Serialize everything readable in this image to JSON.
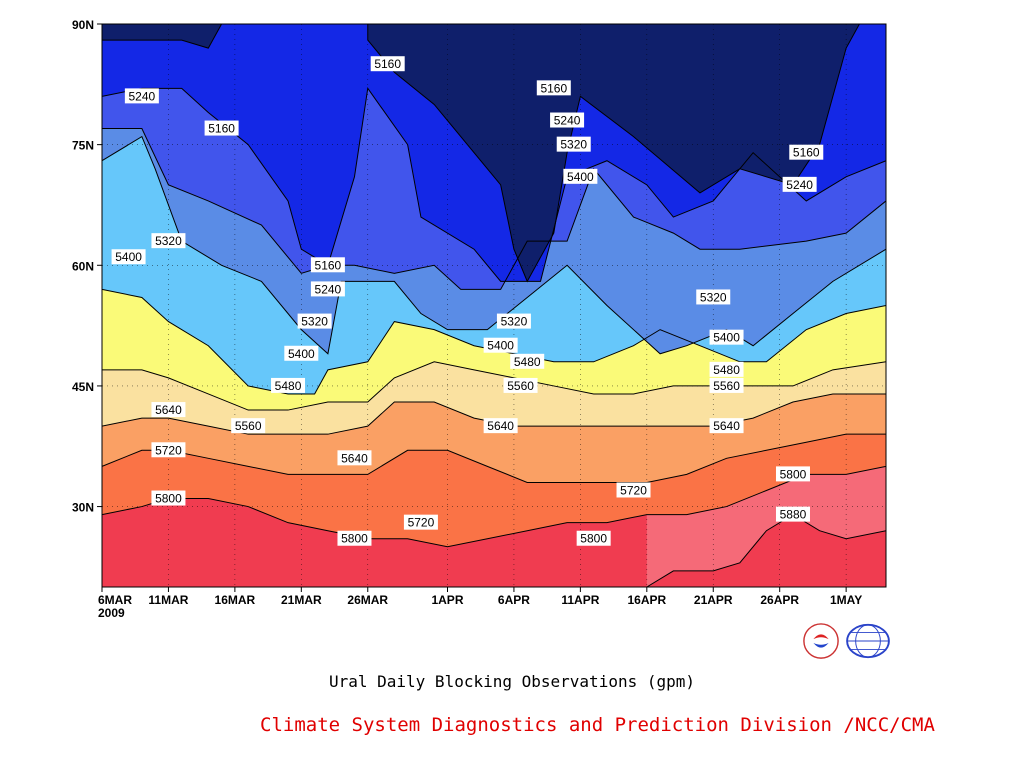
{
  "chart_data": {
    "type": "heatmap",
    "title": "Ural Daily Blocking Observations (gpm)",
    "source": "Climate System Diagnostics and Prediction Division /NCC/CMA",
    "x_date_labels": [
      "6MAR",
      "11MAR",
      "16MAR",
      "21MAR",
      "26MAR",
      "1APR",
      "6APR",
      "11APR",
      "16APR",
      "21APR",
      "26APR",
      "1MAY"
    ],
    "x_year_label": "2009",
    "x_days": [
      0,
      5,
      10,
      15,
      20,
      26,
      31,
      36,
      41,
      46,
      51,
      56
    ],
    "xlim_days": [
      0,
      59
    ],
    "y_tick_labels": [
      "30N",
      "45N",
      "60N",
      "75N",
      "90N"
    ],
    "y_ticks": [
      30,
      45,
      60,
      75,
      90
    ],
    "ylim": [
      20,
      90
    ],
    "contour_levels": [
      5160,
      5240,
      5320,
      5400,
      5480,
      5560,
      5640,
      5720,
      5800,
      5880
    ],
    "fill_colors": [
      "#0f1f6b",
      "#1428e6",
      "#4155ec",
      "#5a8ce6",
      "#66c7fa",
      "#fafa78",
      "#fae1a0",
      "#faa064",
      "#fa7346",
      "#f56a78",
      "#f03c50"
    ],
    "contour_lines": [
      {
        "level": 5160,
        "points": [
          [
            0,
            88
          ],
          [
            6,
            88
          ],
          [
            8,
            87
          ],
          [
            9,
            90
          ],
          [
            20,
            90
          ],
          [
            20,
            88
          ],
          [
            22,
            84
          ],
          [
            25,
            80
          ],
          [
            30,
            70
          ],
          [
            31,
            62
          ],
          [
            32,
            58
          ],
          [
            34,
            64
          ],
          [
            35,
            74
          ],
          [
            36,
            81
          ],
          [
            40,
            76
          ],
          [
            45,
            69
          ],
          [
            48,
            72
          ],
          [
            52,
            70
          ],
          [
            54,
            75
          ],
          [
            56,
            87
          ],
          [
            57,
            90
          ],
          [
            59,
            90
          ]
        ]
      },
      {
        "level": 5240,
        "points": [
          [
            0,
            81
          ],
          [
            3,
            82
          ],
          [
            6,
            82
          ],
          [
            8,
            79
          ],
          [
            11,
            75
          ],
          [
            14,
            68
          ],
          [
            15,
            62
          ],
          [
            17,
            60
          ],
          [
            19,
            71
          ],
          [
            20,
            82
          ],
          [
            23,
            75
          ],
          [
            24,
            66
          ],
          [
            28,
            62
          ],
          [
            30,
            58
          ],
          [
            33,
            58
          ],
          [
            35,
            71
          ],
          [
            38,
            73
          ],
          [
            41,
            70
          ],
          [
            43,
            66
          ],
          [
            46,
            68
          ],
          [
            49,
            74
          ],
          [
            53,
            68
          ],
          [
            56,
            71
          ],
          [
            59,
            73
          ]
        ]
      },
      {
        "level": 5320,
        "points": [
          [
            0,
            77
          ],
          [
            3,
            77
          ],
          [
            5,
            70
          ],
          [
            8,
            68
          ],
          [
            12,
            65
          ],
          [
            15,
            59
          ],
          [
            17,
            60
          ],
          [
            19,
            60
          ],
          [
            22,
            59
          ],
          [
            25,
            60
          ],
          [
            27,
            57
          ],
          [
            30,
            57
          ],
          [
            32,
            63
          ],
          [
            35,
            63
          ],
          [
            37,
            72
          ],
          [
            40,
            66
          ],
          [
            43,
            64
          ],
          [
            45,
            62
          ],
          [
            48,
            62
          ],
          [
            53,
            63
          ],
          [
            56,
            64
          ],
          [
            59,
            68
          ]
        ]
      },
      {
        "level": 5400,
        "points": [
          [
            0,
            73
          ],
          [
            3,
            76
          ],
          [
            4,
            72
          ],
          [
            6,
            63
          ],
          [
            9,
            60
          ],
          [
            12,
            58
          ],
          [
            15,
            52
          ],
          [
            17,
            49
          ],
          [
            18,
            58
          ],
          [
            22,
            58
          ],
          [
            24,
            54
          ],
          [
            26,
            52
          ],
          [
            29,
            52
          ],
          [
            32,
            56
          ],
          [
            35,
            60
          ],
          [
            38,
            55
          ],
          [
            42,
            49
          ],
          [
            44,
            50
          ],
          [
            47,
            52
          ],
          [
            49,
            50
          ],
          [
            52,
            54
          ],
          [
            55,
            58
          ],
          [
            59,
            62
          ]
        ]
      },
      {
        "level": 5480,
        "points": [
          [
            0,
            57
          ],
          [
            3,
            56
          ],
          [
            5,
            53
          ],
          [
            8,
            50
          ],
          [
            11,
            45
          ],
          [
            14,
            44
          ],
          [
            16,
            44
          ],
          [
            17,
            47
          ],
          [
            20,
            48
          ],
          [
            22,
            53
          ],
          [
            25,
            52
          ],
          [
            28,
            50
          ],
          [
            31,
            49
          ],
          [
            34,
            48
          ],
          [
            37,
            48
          ],
          [
            40,
            50
          ],
          [
            42,
            52
          ],
          [
            45,
            50
          ],
          [
            48,
            48
          ],
          [
            50,
            48
          ],
          [
            53,
            52
          ],
          [
            56,
            54
          ],
          [
            59,
            55
          ]
        ]
      },
      {
        "level": 5560,
        "points": [
          [
            0,
            47
          ],
          [
            3,
            47
          ],
          [
            5,
            46
          ],
          [
            8,
            44
          ],
          [
            11,
            42
          ],
          [
            14,
            42
          ],
          [
            17,
            43
          ],
          [
            20,
            43
          ],
          [
            22,
            46
          ],
          [
            25,
            48
          ],
          [
            28,
            47
          ],
          [
            31,
            46
          ],
          [
            34,
            45
          ],
          [
            37,
            44
          ],
          [
            40,
            44
          ],
          [
            43,
            45
          ],
          [
            46,
            45
          ],
          [
            49,
            45
          ],
          [
            52,
            45
          ],
          [
            55,
            47
          ],
          [
            59,
            48
          ]
        ]
      },
      {
        "level": 5640,
        "points": [
          [
            0,
            40
          ],
          [
            3,
            41
          ],
          [
            5,
            41
          ],
          [
            8,
            40
          ],
          [
            11,
            39
          ],
          [
            14,
            39
          ],
          [
            17,
            39
          ],
          [
            20,
            40
          ],
          [
            22,
            43
          ],
          [
            25,
            43
          ],
          [
            28,
            41
          ],
          [
            31,
            40
          ],
          [
            34,
            40
          ],
          [
            37,
            40
          ],
          [
            40,
            40
          ],
          [
            43,
            40
          ],
          [
            46,
            40
          ],
          [
            49,
            41
          ],
          [
            52,
            43
          ],
          [
            55,
            44
          ],
          [
            59,
            44
          ]
        ]
      },
      {
        "level": 5720,
        "points": [
          [
            0,
            35
          ],
          [
            3,
            37
          ],
          [
            5,
            37
          ],
          [
            8,
            36
          ],
          [
            11,
            35
          ],
          [
            14,
            34
          ],
          [
            17,
            34
          ],
          [
            20,
            34
          ],
          [
            23,
            37
          ],
          [
            26,
            37
          ],
          [
            29,
            35
          ],
          [
            32,
            33
          ],
          [
            35,
            33
          ],
          [
            38,
            33
          ],
          [
            41,
            33
          ],
          [
            44,
            34
          ],
          [
            47,
            36
          ],
          [
            50,
            37
          ],
          [
            53,
            38
          ],
          [
            56,
            39
          ],
          [
            59,
            39
          ]
        ]
      },
      {
        "level": 5800,
        "points": [
          [
            0,
            29
          ],
          [
            3,
            30
          ],
          [
            5,
            31
          ],
          [
            8,
            31
          ],
          [
            11,
            30
          ],
          [
            14,
            28
          ],
          [
            17,
            27
          ],
          [
            20,
            26
          ],
          [
            23,
            26
          ],
          [
            26,
            25
          ],
          [
            29,
            26
          ],
          [
            32,
            27
          ],
          [
            35,
            28
          ],
          [
            38,
            28
          ],
          [
            41,
            29
          ],
          [
            44,
            29
          ],
          [
            47,
            30
          ],
          [
            50,
            32
          ],
          [
            53,
            34
          ],
          [
            56,
            34
          ],
          [
            59,
            35
          ]
        ]
      },
      {
        "level": 5880,
        "points": [
          [
            41,
            20
          ],
          [
            43,
            22
          ],
          [
            46,
            22
          ],
          [
            48,
            23
          ],
          [
            50,
            27
          ],
          [
            52,
            29
          ],
          [
            54,
            27
          ],
          [
            56,
            26
          ],
          [
            59,
            27
          ]
        ]
      }
    ],
    "contour_labels": [
      {
        "text": "5160",
        "x": 21.5,
        "y": 85
      },
      {
        "text": "5240",
        "x": 3,
        "y": 81
      },
      {
        "text": "5160",
        "x": 9,
        "y": 77
      },
      {
        "text": "5160",
        "x": 34,
        "y": 82
      },
      {
        "text": "5240",
        "x": 35,
        "y": 78
      },
      {
        "text": "5320",
        "x": 35.5,
        "y": 75
      },
      {
        "text": "5400",
        "x": 36,
        "y": 71
      },
      {
        "text": "5160",
        "x": 53,
        "y": 74
      },
      {
        "text": "5240",
        "x": 52.5,
        "y": 70
      },
      {
        "text": "5320",
        "x": 5,
        "y": 63
      },
      {
        "text": "5400",
        "x": 2,
        "y": 61
      },
      {
        "text": "5160",
        "x": 17,
        "y": 60
      },
      {
        "text": "5240",
        "x": 17,
        "y": 57
      },
      {
        "text": "5320",
        "x": 16,
        "y": 53
      },
      {
        "text": "5400",
        "x": 15,
        "y": 49
      },
      {
        "text": "5480",
        "x": 14,
        "y": 45
      },
      {
        "text": "5320",
        "x": 31,
        "y": 53
      },
      {
        "text": "5400",
        "x": 30,
        "y": 50
      },
      {
        "text": "5480",
        "x": 32,
        "y": 48
      },
      {
        "text": "5560",
        "x": 31.5,
        "y": 45
      },
      {
        "text": "5320",
        "x": 46,
        "y": 56
      },
      {
        "text": "5400",
        "x": 47,
        "y": 51
      },
      {
        "text": "5480",
        "x": 47,
        "y": 47
      },
      {
        "text": "5560",
        "x": 47,
        "y": 45
      },
      {
        "text": "5640",
        "x": 5,
        "y": 42
      },
      {
        "text": "5560",
        "x": 11,
        "y": 40
      },
      {
        "text": "5720",
        "x": 5,
        "y": 37
      },
      {
        "text": "5640",
        "x": 19,
        "y": 36
      },
      {
        "text": "5640",
        "x": 30,
        "y": 40
      },
      {
        "text": "5640",
        "x": 47,
        "y": 40
      },
      {
        "text": "5800",
        "x": 5,
        "y": 31
      },
      {
        "text": "5720",
        "x": 40,
        "y": 32
      },
      {
        "text": "5800",
        "x": 52,
        "y": 34
      },
      {
        "text": "5720",
        "x": 24,
        "y": 28
      },
      {
        "text": "5800",
        "x": 19,
        "y": 26
      },
      {
        "text": "5800",
        "x": 37,
        "y": 26
      },
      {
        "text": "5880",
        "x": 52,
        "y": 29
      }
    ]
  }
}
